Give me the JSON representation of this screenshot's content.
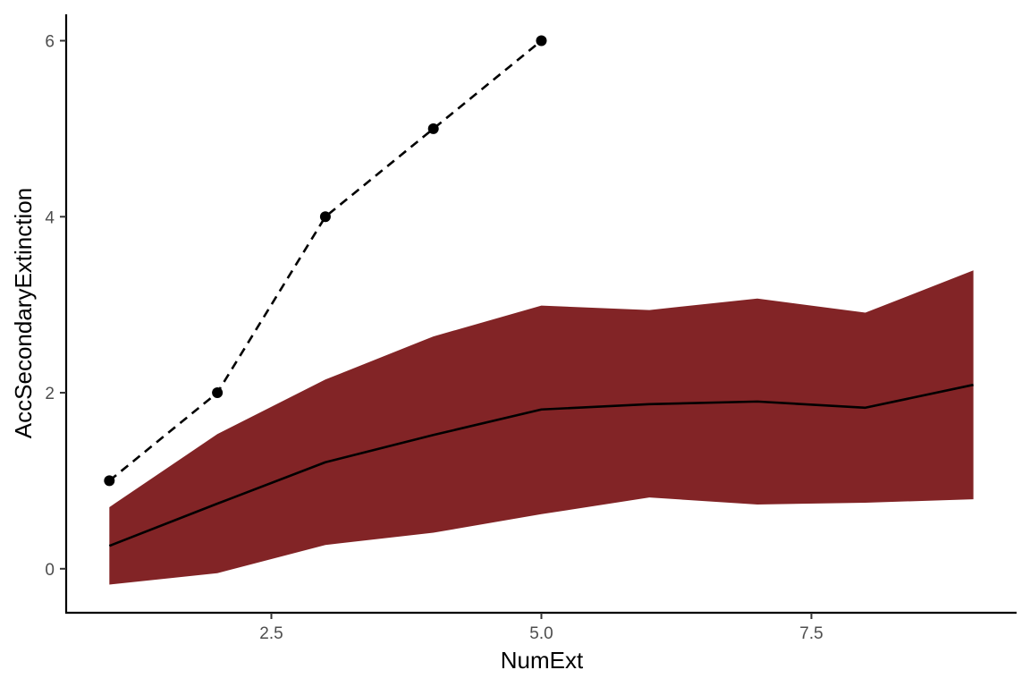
{
  "chart_data": {
    "type": "line",
    "title": "",
    "xlabel": "NumExt",
    "ylabel": "AccSecondaryExtinction",
    "xlim": [
      0.6,
      9.4
    ],
    "ylim": [
      -0.5,
      6.3
    ],
    "x_ticks": [
      2.5,
      5.0,
      7.5
    ],
    "x_tick_labels": [
      "2.5",
      "5.0",
      "7.5"
    ],
    "y_ticks": [
      0,
      2,
      4,
      6
    ],
    "y_tick_labels": [
      "0",
      "2",
      "4",
      "6"
    ],
    "grid": false,
    "legend": "none",
    "series": [
      {
        "style": "ribbon",
        "color": "#822426",
        "x": [
          1,
          2,
          3,
          4,
          5,
          6,
          7,
          8,
          9
        ],
        "lower": [
          -0.18,
          -0.05,
          0.27,
          0.41,
          0.62,
          0.81,
          0.73,
          0.75,
          0.79
        ],
        "upper": [
          0.7,
          1.53,
          2.15,
          2.64,
          2.99,
          2.94,
          3.07,
          2.91,
          3.39
        ]
      },
      {
        "style": "solid-line",
        "color": "#000000",
        "x": [
          1,
          2,
          3,
          4,
          5,
          6,
          7,
          8,
          9
        ],
        "values": [
          0.26,
          0.74,
          1.21,
          1.52,
          1.81,
          1.87,
          1.9,
          1.83,
          2.09
        ]
      },
      {
        "style": "dashed-line-points",
        "color": "#000000",
        "x": [
          1,
          2,
          3,
          4,
          5
        ],
        "values": [
          1,
          2,
          4,
          5,
          6
        ]
      }
    ]
  }
}
